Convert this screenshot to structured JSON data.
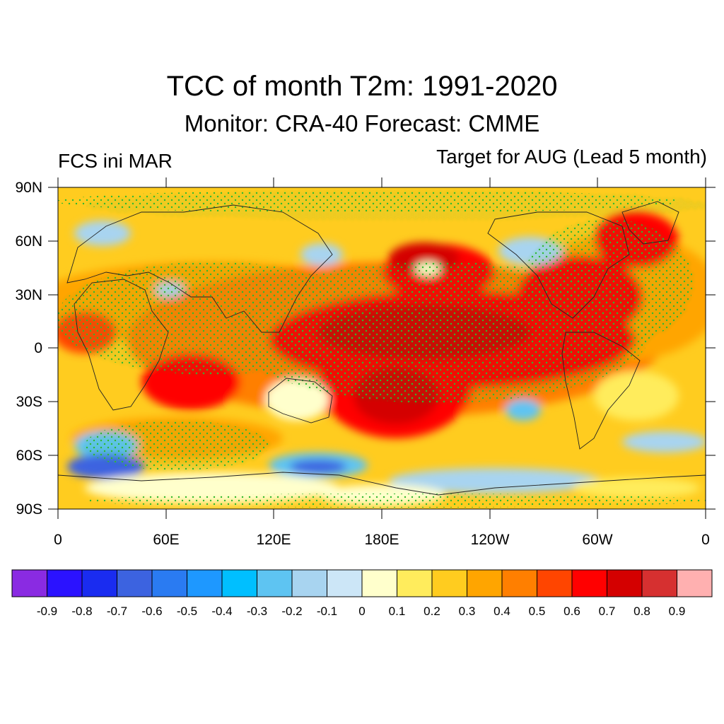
{
  "title": "TCC of month T2m: 1991-2020",
  "subtitle": "Monitor: CRA-40   Forecast: CMME",
  "left_label": "FCS ini MAR",
  "right_label": "Target for AUG (Lead 5 month)",
  "lat_labels": [
    "90N",
    "60N",
    "30N",
    "0",
    "30S",
    "60S",
    "90S"
  ],
  "lon_labels": [
    "0",
    "60E",
    "120E",
    "180E",
    "120W",
    "60W",
    "0"
  ],
  "colorbar": {
    "colors": [
      "#8a2be2",
      "#2b12ff",
      "#1a2cf0",
      "#3c63e0",
      "#2a7bf2",
      "#1e98ff",
      "#00bfff",
      "#5ec4f2",
      "#a8d4f0",
      "#cce6f7",
      "#ffffcc",
      "#ffec5c",
      "#ffcc1f",
      "#ffa500",
      "#ff7f00",
      "#ff4500",
      "#ff0000",
      "#d40000",
      "#d63030",
      "#ffb0b0"
    ],
    "labels": [
      "-0.9",
      "-0.8",
      "-0.7",
      "-0.6",
      "-0.5",
      "-0.4",
      "-0.3",
      "-0.2",
      "-0.1",
      "0",
      "0.1",
      "0.2",
      "0.3",
      "0.4",
      "0.5",
      "0.6",
      "0.7",
      "0.8",
      "0.9"
    ]
  }
}
